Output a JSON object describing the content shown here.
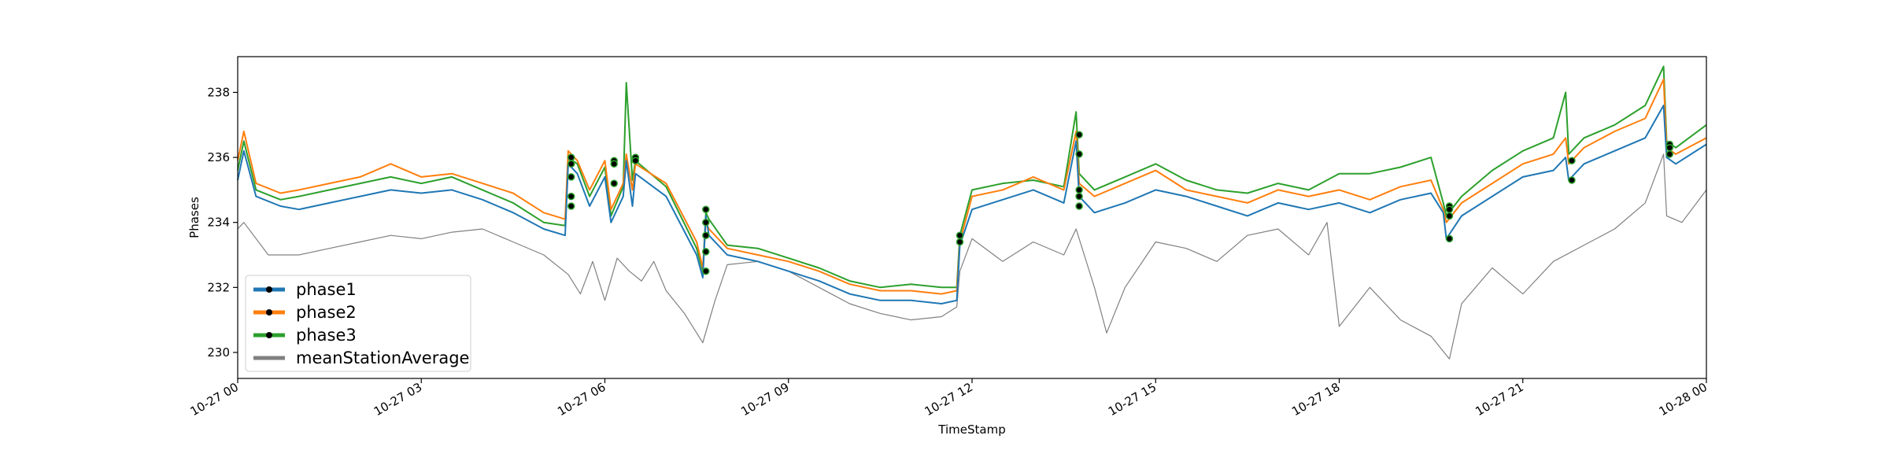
{
  "chart_data": {
    "type": "line",
    "title": "",
    "xlabel": "TimeStamp",
    "ylabel": "Phases",
    "xlim": [
      "10-27 00",
      "10-28 00"
    ],
    "ylim": [
      229.2,
      239.1
    ],
    "x_ticks": [
      "10-27 00",
      "10-27 03",
      "10-27 06",
      "10-27 09",
      "10-27 12",
      "10-27 15",
      "10-27 18",
      "10-27 21",
      "10-28 00"
    ],
    "y_ticks": [
      230,
      232,
      234,
      236,
      238
    ],
    "x_tick_labels": [
      "10-27 00",
      "10-27 03",
      "10-27 06",
      "10-27 09",
      "10-27 12",
      "10-27 15",
      "10-27 18",
      "10-27 21",
      "10-28 00"
    ],
    "y_tick_labels": [
      "230",
      "232",
      "234",
      "236",
      "238"
    ],
    "grid": false,
    "legend_position": "lower-left",
    "x_units": "hours",
    "series": [
      {
        "name": "phase1",
        "color": "#1f77b4",
        "x": [
          0,
          0.1,
          0.3,
          0.7,
          1.0,
          1.5,
          2.0,
          2.5,
          3.0,
          3.5,
          4.0,
          4.5,
          5.0,
          5.35,
          5.4,
          5.55,
          5.75,
          6.0,
          6.1,
          6.3,
          6.35,
          6.45,
          6.5,
          7.0,
          7.5,
          7.6,
          7.65,
          7.7,
          8.0,
          8.5,
          9.0,
          9.5,
          10.0,
          10.5,
          11.0,
          11.5,
          11.75,
          11.8,
          12.0,
          12.5,
          13.0,
          13.5,
          13.7,
          13.75,
          14.0,
          14.5,
          15.0,
          15.5,
          16.0,
          16.5,
          17.0,
          17.5,
          18.0,
          18.5,
          19.0,
          19.5,
          19.7,
          19.75,
          20.0,
          20.5,
          21.0,
          21.5,
          21.7,
          21.75,
          22.0,
          22.5,
          23.0,
          23.3,
          23.35,
          23.5,
          24.0
        ],
        "y": [
          235.3,
          236.2,
          234.8,
          234.5,
          234.4,
          234.6,
          234.8,
          235.0,
          234.9,
          235.0,
          234.7,
          234.3,
          233.8,
          233.6,
          235.8,
          235.5,
          234.5,
          235.4,
          234.0,
          234.8,
          235.9,
          234.5,
          235.5,
          234.8,
          233.0,
          232.3,
          234.2,
          233.6,
          233.0,
          232.8,
          232.5,
          232.2,
          231.8,
          231.6,
          231.6,
          231.5,
          231.6,
          233.3,
          234.4,
          234.7,
          235.0,
          234.6,
          236.5,
          234.8,
          234.3,
          234.6,
          235.0,
          234.8,
          234.5,
          234.2,
          234.6,
          234.4,
          234.6,
          234.3,
          234.7,
          234.9,
          234.3,
          233.5,
          234.2,
          234.8,
          235.4,
          235.6,
          236.0,
          235.3,
          235.8,
          236.2,
          236.6,
          237.6,
          236.0,
          235.8,
          236.4
        ]
      },
      {
        "name": "phase2",
        "color": "#ff7f0e",
        "x": [
          0,
          0.1,
          0.3,
          0.7,
          1.0,
          1.5,
          2.0,
          2.5,
          3.0,
          3.5,
          4.0,
          4.5,
          5.0,
          5.35,
          5.4,
          5.55,
          5.75,
          6.0,
          6.1,
          6.3,
          6.35,
          6.45,
          6.5,
          7.0,
          7.5,
          7.6,
          7.65,
          7.7,
          8.0,
          8.5,
          9.0,
          9.5,
          10.0,
          10.5,
          11.0,
          11.5,
          11.75,
          11.8,
          12.0,
          12.5,
          13.0,
          13.5,
          13.7,
          13.75,
          14.0,
          14.5,
          15.0,
          15.5,
          16.0,
          16.5,
          17.0,
          17.5,
          18.0,
          18.5,
          19.0,
          19.5,
          19.7,
          19.75,
          20.0,
          20.5,
          21.0,
          21.5,
          21.7,
          21.75,
          22.0,
          22.5,
          23.0,
          23.3,
          23.35,
          23.5,
          24.0
        ],
        "y": [
          235.9,
          236.8,
          235.2,
          234.9,
          235.0,
          235.2,
          235.4,
          235.8,
          235.4,
          235.5,
          235.2,
          234.9,
          234.3,
          234.1,
          236.2,
          235.9,
          235.0,
          235.9,
          234.4,
          235.2,
          236.1,
          235.0,
          235.8,
          235.2,
          233.4,
          232.6,
          234.0,
          233.8,
          233.2,
          233.0,
          232.8,
          232.5,
          232.1,
          231.9,
          231.9,
          231.8,
          231.9,
          233.4,
          234.8,
          235.0,
          235.4,
          235.0,
          236.8,
          235.2,
          234.8,
          235.2,
          235.6,
          235.0,
          234.8,
          234.6,
          235.0,
          234.8,
          235.0,
          234.7,
          235.1,
          235.3,
          234.4,
          234.0,
          234.6,
          235.2,
          235.8,
          236.1,
          236.6,
          235.8,
          236.3,
          236.8,
          237.2,
          238.4,
          236.3,
          236.1,
          236.6
        ]
      },
      {
        "name": "phase3",
        "color": "#2ca02c",
        "x": [
          0,
          0.1,
          0.3,
          0.7,
          1.0,
          1.5,
          2.0,
          2.5,
          3.0,
          3.5,
          4.0,
          4.5,
          5.0,
          5.35,
          5.4,
          5.55,
          5.75,
          6.0,
          6.1,
          6.3,
          6.35,
          6.45,
          6.5,
          7.0,
          7.5,
          7.6,
          7.65,
          7.7,
          8.0,
          8.5,
          9.0,
          9.5,
          10.0,
          10.5,
          11.0,
          11.5,
          11.75,
          11.8,
          12.0,
          12.5,
          13.0,
          13.5,
          13.7,
          13.75,
          14.0,
          14.5,
          15.0,
          15.5,
          16.0,
          16.5,
          17.0,
          17.5,
          18.0,
          18.5,
          19.0,
          19.5,
          19.7,
          19.75,
          20.0,
          20.5,
          21.0,
          21.5,
          21.7,
          21.75,
          22.0,
          22.5,
          23.0,
          23.3,
          23.35,
          23.5,
          24.0
        ],
        "y": [
          235.6,
          236.5,
          235.0,
          234.7,
          234.8,
          235.0,
          235.2,
          235.4,
          235.2,
          235.4,
          235.0,
          234.6,
          234.0,
          233.9,
          236.0,
          235.8,
          234.8,
          235.7,
          234.2,
          235.1,
          238.3,
          235.3,
          235.9,
          235.1,
          233.2,
          232.5,
          234.3,
          234.1,
          233.3,
          233.2,
          232.9,
          232.6,
          232.2,
          232.0,
          232.1,
          232.0,
          232.0,
          233.6,
          235.0,
          235.2,
          235.3,
          235.1,
          237.4,
          235.5,
          235.0,
          235.4,
          235.8,
          235.3,
          235.0,
          234.9,
          235.2,
          235.0,
          235.5,
          235.5,
          235.7,
          236.0,
          234.6,
          234.2,
          234.8,
          235.6,
          236.2,
          236.6,
          238.0,
          236.1,
          236.6,
          237.0,
          237.6,
          238.8,
          236.5,
          236.3,
          237.0
        ]
      },
      {
        "name": "meanStationAverage",
        "color": "#808080",
        "x": [
          0,
          0.1,
          0.5,
          1.0,
          1.5,
          2.0,
          2.5,
          3.0,
          3.5,
          4.0,
          4.5,
          5.0,
          5.4,
          5.6,
          5.8,
          6.0,
          6.2,
          6.4,
          6.6,
          6.8,
          7.0,
          7.3,
          7.6,
          7.8,
          8.0,
          8.5,
          9.0,
          9.5,
          10.0,
          10.5,
          11.0,
          11.5,
          11.75,
          11.8,
          12.0,
          12.5,
          13.0,
          13.5,
          13.7,
          14.0,
          14.2,
          14.5,
          15.0,
          15.5,
          16.0,
          16.5,
          17.0,
          17.5,
          17.8,
          18.0,
          18.5,
          19.0,
          19.5,
          19.8,
          20.0,
          20.5,
          21.0,
          21.5,
          22.0,
          22.5,
          23.0,
          23.3,
          23.35,
          23.6,
          24.0
        ],
        "y": [
          233.8,
          234.0,
          233.0,
          233.0,
          233.2,
          233.4,
          233.6,
          233.5,
          233.7,
          233.8,
          233.4,
          233.0,
          232.4,
          231.8,
          232.8,
          231.6,
          232.9,
          232.5,
          232.2,
          232.8,
          231.9,
          231.2,
          230.3,
          231.6,
          232.7,
          232.8,
          232.5,
          232.0,
          231.5,
          231.2,
          231.0,
          231.1,
          231.4,
          232.5,
          233.5,
          232.8,
          233.4,
          233.0,
          233.8,
          232.0,
          230.6,
          232.0,
          233.4,
          233.2,
          232.8,
          233.6,
          233.8,
          233.0,
          234.0,
          230.8,
          232.0,
          231.0,
          230.5,
          229.8,
          231.5,
          232.6,
          231.8,
          232.8,
          233.3,
          233.8,
          234.6,
          236.1,
          234.2,
          234.0,
          235.0
        ]
      }
    ],
    "markers": {
      "x": [
        5.45,
        5.45,
        5.45,
        5.45,
        5.45,
        6.15,
        6.15,
        6.15,
        6.5,
        6.5,
        7.65,
        7.65,
        7.65,
        7.65,
        7.65,
        11.8,
        11.8,
        13.75,
        13.75,
        13.75,
        13.75,
        13.75,
        19.8,
        19.8,
        19.8,
        19.8,
        21.8,
        21.8,
        23.4,
        23.4,
        23.4
      ],
      "y": [
        236.0,
        235.8,
        235.4,
        234.8,
        234.5,
        235.9,
        235.8,
        235.2,
        236.0,
        235.9,
        234.4,
        234.0,
        233.6,
        233.1,
        232.5,
        233.6,
        233.4,
        236.7,
        236.1,
        235.0,
        234.8,
        234.5,
        234.5,
        234.4,
        234.2,
        233.5,
        235.9,
        235.3,
        236.4,
        236.3,
        236.1
      ]
    }
  }
}
